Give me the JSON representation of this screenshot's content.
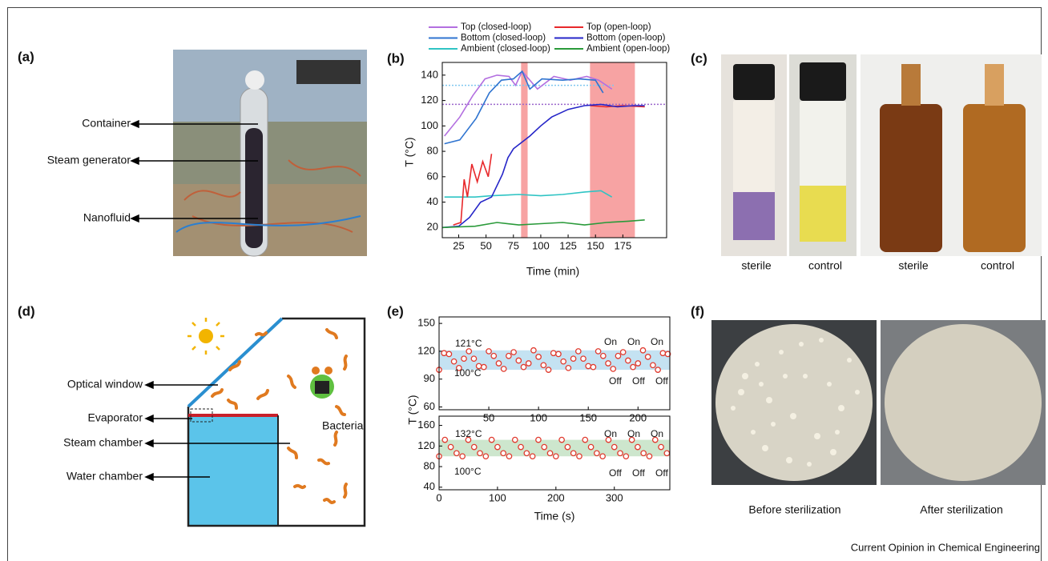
{
  "panels": {
    "a": {
      "label": "(a)",
      "callouts": [
        "Container",
        "Steam generator",
        "Nanofluid"
      ]
    },
    "b": {
      "label": "(b)"
    },
    "c": {
      "label": "(c)",
      "captions": [
        "sterile",
        "control",
        "sterile",
        "control"
      ]
    },
    "d": {
      "label": "(d)",
      "callouts": [
        "Optical window",
        "Evaporator",
        "Steam chamber",
        "Water chamber"
      ],
      "bacteria": "Bacteria"
    },
    "e": {
      "label": "(e)"
    },
    "f": {
      "label": "(f)",
      "captions": [
        "Before sterilization",
        "After sterilization"
      ]
    }
  },
  "footer": "Current Opinion in Chemical Engineering",
  "chart_data": [
    {
      "type": "line",
      "xlabel": "Time (min)",
      "ylabel": "T (°C)",
      "xlim": [
        10,
        215
      ],
      "ylim": [
        12,
        150
      ],
      "xticks": [
        25,
        50,
        75,
        100,
        125,
        150,
        175
      ],
      "yticks": [
        20,
        40,
        60,
        80,
        100,
        120,
        140
      ],
      "shaded_ranges": [
        [
          82,
          88
        ],
        [
          145,
          186
        ]
      ],
      "shade_color": "#f7a3a3",
      "reference_lines": [
        {
          "value": 132,
          "color": "#7fc8f0",
          "xrange": [
            10,
            168
          ]
        },
        {
          "value": 117,
          "color": "#9a66cc"
        }
      ],
      "series": [
        {
          "name": "Top (closed-loop)",
          "color": "#b36fe0",
          "x": [
            12,
            26,
            38,
            49,
            60,
            71,
            77,
            83,
            90,
            97,
            112,
            127,
            142,
            153,
            165
          ],
          "values": [
            92,
            107,
            124,
            137,
            140,
            139,
            132,
            143,
            136,
            129,
            139,
            136,
            139,
            136,
            129
          ]
        },
        {
          "name": "Bottom (closed-loop)",
          "color": "#2f74d0",
          "x": [
            12,
            26,
            41,
            53,
            64,
            75,
            83,
            90,
            101,
            120,
            135,
            150,
            157
          ],
          "values": [
            86,
            89,
            106,
            126,
            136,
            137,
            143,
            129,
            137,
            136,
            137,
            136,
            126
          ]
        },
        {
          "name": "Ambient (closed-loop)",
          "color": "#2fc4c4",
          "x": [
            12,
            40,
            55,
            80,
            100,
            120,
            140,
            155,
            165
          ],
          "values": [
            44,
            44,
            45,
            46,
            45,
            46,
            48,
            49,
            44
          ]
        },
        {
          "name": "Top (open-loop)",
          "color": "#e8282b",
          "x": [
            20,
            27,
            30,
            33,
            37,
            42,
            47,
            52,
            55,
            58,
            145,
            160,
            175,
            195
          ],
          "values": [
            22,
            24,
            58,
            44,
            70,
            56,
            72,
            60,
            78,
            null,
            116,
            115,
            116,
            115
          ]
        },
        {
          "name": "Bottom (open-loop)",
          "color": "#2525c8",
          "x": [
            10,
            25,
            35,
            45,
            55,
            65,
            70,
            75,
            90,
            100,
            110,
            125,
            140,
            155,
            170,
            185,
            195
          ],
          "values": [
            20,
            21,
            28,
            40,
            44,
            62,
            75,
            82,
            92,
            100,
            107,
            113,
            116,
            117,
            115,
            116,
            116
          ]
        },
        {
          "name": "Ambient (open-loop)",
          "color": "#2a9a3a",
          "x": [
            10,
            40,
            60,
            80,
            100,
            120,
            140,
            160,
            180,
            195
          ],
          "values": [
            20,
            21,
            24,
            22,
            23,
            24,
            22,
            24,
            25,
            26
          ]
        }
      ]
    },
    {
      "type": "scatter",
      "xlim": [
        0,
        232
      ],
      "ylim": [
        57,
        157
      ],
      "xticks": [
        50,
        100,
        150,
        200
      ],
      "yticks": [
        60,
        90,
        120,
        150
      ],
      "band": [
        100,
        121
      ],
      "band_color": "#c4e2f2",
      "marker_color": "#e03a2e",
      "annotations": [
        "121°C",
        "100°C",
        "On",
        "On",
        "On",
        "Off",
        "Off",
        "Off"
      ],
      "x": [
        0,
        5,
        10,
        15,
        20,
        25,
        30,
        35,
        40,
        45,
        50,
        55,
        60,
        65,
        70,
        75,
        80,
        85,
        90,
        95,
        100,
        105,
        110,
        115,
        120,
        125,
        130,
        135,
        140,
        145,
        150,
        155,
        160,
        165,
        170,
        175,
        180,
        185,
        190,
        195,
        200,
        205,
        210,
        215,
        220,
        225,
        230
      ],
      "values": [
        100,
        118,
        117,
        109,
        102,
        112,
        120,
        112,
        104,
        103,
        120,
        115,
        107,
        101,
        115,
        119,
        110,
        103,
        107,
        121,
        114,
        105,
        100,
        118,
        117,
        109,
        102,
        112,
        120,
        112,
        104,
        103,
        120,
        115,
        107,
        101,
        115,
        119,
        110,
        103,
        107,
        121,
        114,
        105,
        100,
        118,
        117
      ]
    },
    {
      "type": "scatter",
      "xlabel": "Time (s)",
      "ylabel": "T (°C)",
      "xlim": [
        0,
        395
      ],
      "ylim": [
        35,
        178
      ],
      "xticks": [
        0,
        100,
        200,
        300
      ],
      "yticks": [
        40,
        80,
        120,
        160
      ],
      "band": [
        100,
        132
      ],
      "band_color": "#cde6cd",
      "marker_color": "#e03a2e",
      "annotations": [
        "132°C",
        "100°C",
        "On",
        "On",
        "On",
        "Off",
        "Off",
        "Off"
      ],
      "x": [
        0,
        10,
        20,
        30,
        40,
        50,
        60,
        70,
        80,
        90,
        100,
        110,
        120,
        130,
        140,
        150,
        160,
        170,
        180,
        190,
        200,
        210,
        220,
        230,
        240,
        250,
        260,
        270,
        280,
        290,
        300,
        310,
        320,
        330,
        340,
        350,
        360,
        370,
        380,
        390
      ],
      "values": [
        100,
        132,
        118,
        106,
        100,
        132,
        118,
        106,
        100,
        132,
        118,
        106,
        100,
        132,
        118,
        106,
        100,
        132,
        118,
        106,
        100,
        132,
        118,
        106,
        100,
        132,
        118,
        106,
        100,
        132,
        118,
        106,
        100,
        132,
        118,
        106,
        100,
        132,
        118,
        106
      ]
    }
  ]
}
